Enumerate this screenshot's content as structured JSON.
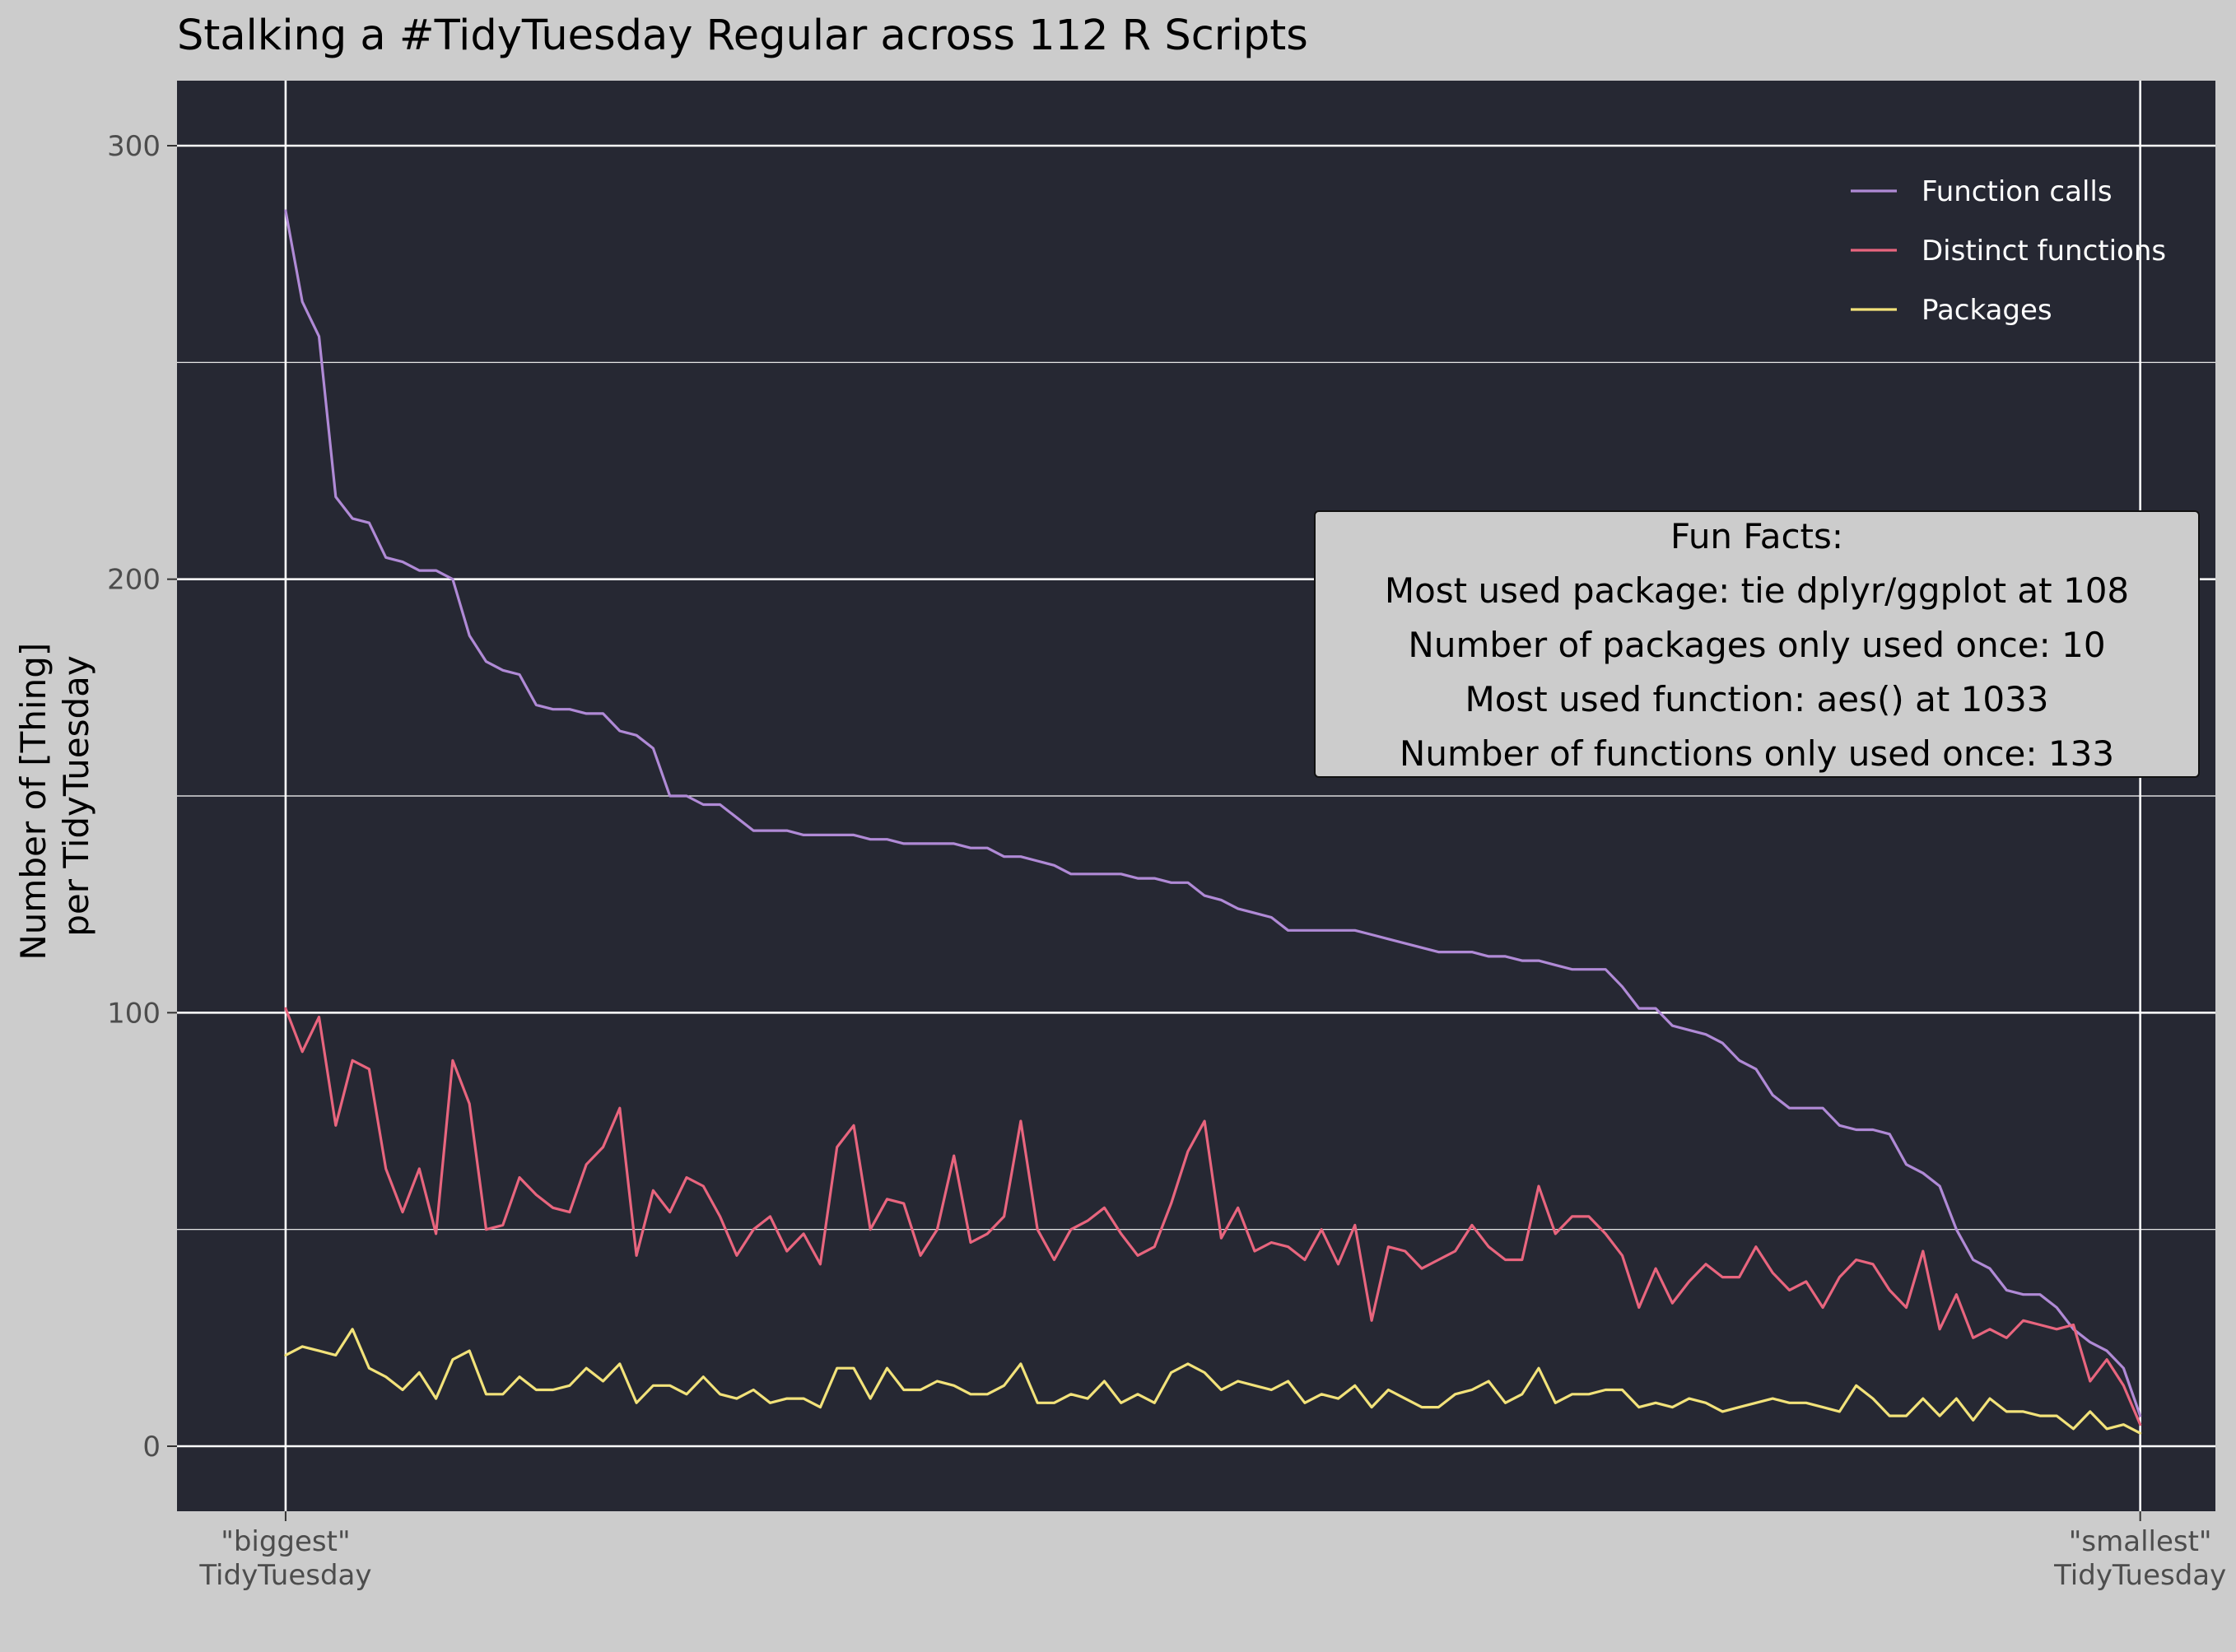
{
  "chart_data": {
    "type": "line",
    "title": "Stalking a #TidyTuesday Regular across 112 R Scripts",
    "ylabel_lines": [
      "Number of [Thing]",
      "per TidyTuesday"
    ],
    "xlim": [
      -5.5,
      116.5
    ],
    "ylim": [
      -15,
      315
    ],
    "y_ticks": [
      0,
      100,
      200,
      300
    ],
    "y_tick_labels": [
      "0",
      "100",
      "200",
      "300"
    ],
    "x_ticks": [
      {
        "x": 1,
        "lines": [
          "\"biggest\"",
          "TidyTuesday"
        ]
      },
      {
        "x": 112,
        "lines": [
          "\"smallest\"",
          "TidyTuesday"
        ]
      }
    ],
    "panel_background": "#262833",
    "grid": true,
    "legend_position": "top-right",
    "series": [
      {
        "name": "Function calls",
        "color": "#b08ad6",
        "values": [
          285,
          264,
          256,
          219,
          214,
          213,
          205,
          204,
          202,
          202,
          200,
          187,
          181,
          179,
          178,
          171,
          170,
          170,
          169,
          169,
          165,
          164,
          161,
          150,
          150,
          148,
          148,
          145,
          142,
          142,
          142,
          141,
          141,
          141,
          141,
          140,
          140,
          139,
          139,
          139,
          139,
          138,
          138,
          136,
          136,
          135,
          134,
          132,
          132,
          132,
          132,
          131,
          131,
          130,
          130,
          127,
          126,
          124,
          123,
          122,
          119,
          119,
          119,
          119,
          119,
          118,
          117,
          116,
          115,
          114,
          114,
          114,
          113,
          113,
          112,
          112,
          111,
          110,
          110,
          110,
          106,
          101,
          101,
          97,
          96,
          95,
          93,
          89,
          87,
          81,
          78,
          78,
          78,
          74,
          73,
          73,
          72,
          65,
          63,
          60,
          50,
          43,
          41,
          36,
          35,
          35,
          32,
          27,
          24,
          22,
          18,
          7
        ]
      },
      {
        "name": "Distinct functions",
        "color": "#e8657e",
        "values": [
          101,
          91,
          99,
          74,
          89,
          87,
          64,
          54,
          64,
          49,
          89,
          79,
          50,
          51,
          62,
          58,
          55,
          54,
          65,
          69,
          78,
          44,
          59,
          54,
          62,
          60,
          53,
          44,
          50,
          53,
          45,
          49,
          42,
          69,
          74,
          50,
          57,
          56,
          44,
          50,
          67,
          47,
          49,
          53,
          75,
          50,
          43,
          50,
          52,
          55,
          49,
          44,
          46,
          56,
          68,
          75,
          48,
          55,
          45,
          47,
          46,
          43,
          50,
          42,
          51,
          29,
          46,
          45,
          41,
          43,
          45,
          51,
          46,
          43,
          43,
          60,
          49,
          53,
          53,
          49,
          44,
          32,
          41,
          33,
          38,
          42,
          39,
          39,
          46,
          40,
          36,
          38,
          32,
          39,
          43,
          42,
          36,
          32,
          45,
          27,
          35,
          25,
          27,
          25,
          29,
          28,
          27,
          28,
          15,
          20,
          14,
          5
        ]
      },
      {
        "name": "Packages",
        "color": "#f2e27a",
        "values": [
          21,
          23,
          22,
          21,
          27,
          18,
          16,
          13,
          17,
          11,
          20,
          22,
          12,
          12,
          16,
          13,
          13,
          14,
          18,
          15,
          19,
          10,
          14,
          14,
          12,
          16,
          12,
          11,
          13,
          10,
          11,
          11,
          9,
          18,
          18,
          11,
          18,
          13,
          13,
          15,
          14,
          12,
          12,
          14,
          19,
          10,
          10,
          12,
          11,
          15,
          10,
          12,
          10,
          17,
          19,
          17,
          13,
          15,
          14,
          13,
          15,
          10,
          12,
          11,
          14,
          9,
          13,
          11,
          9,
          9,
          12,
          13,
          15,
          10,
          12,
          18,
          10,
          12,
          12,
          13,
          13,
          9,
          10,
          9,
          11,
          10,
          8,
          9,
          10,
          11,
          10,
          10,
          9,
          8,
          14,
          11,
          7,
          7,
          11,
          7,
          11,
          6,
          11,
          8,
          8,
          7,
          7,
          4,
          8,
          4,
          5,
          3
        ]
      }
    ],
    "annotation": {
      "lines": [
        "Fun Facts:",
        "Most used package: tie dplyr/ggplot at 108",
        "Number of packages only used once: 10",
        "Most used function: aes() at 1033",
        "Number of functions only used once: 133"
      ]
    }
  }
}
